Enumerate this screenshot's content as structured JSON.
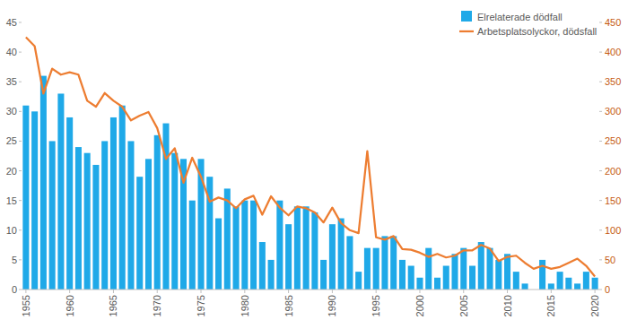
{
  "chart_data": {
    "type": "bar",
    "x": [
      1955,
      1956,
      1957,
      1958,
      1959,
      1960,
      1961,
      1962,
      1963,
      1964,
      1965,
      1966,
      1967,
      1968,
      1969,
      1970,
      1971,
      1972,
      1973,
      1974,
      1975,
      1976,
      1977,
      1978,
      1979,
      1980,
      1981,
      1982,
      1983,
      1984,
      1985,
      1986,
      1987,
      1988,
      1989,
      1990,
      1991,
      1992,
      1993,
      1994,
      1995,
      1996,
      1997,
      1998,
      1999,
      2000,
      2001,
      2002,
      2003,
      2004,
      2005,
      2006,
      2007,
      2008,
      2009,
      2010,
      2011,
      2012,
      2013,
      2014,
      2015,
      2016,
      2017,
      2018,
      2019,
      2020
    ],
    "xlim": [
      1954.5,
      2020.5
    ],
    "xticks": [
      1955,
      1960,
      1965,
      1970,
      1975,
      1980,
      1985,
      1990,
      1995,
      2000,
      2005,
      2010,
      2015,
      2020
    ],
    "ylim": [
      0,
      45
    ],
    "yticks": [
      0,
      5,
      10,
      15,
      20,
      25,
      30,
      35,
      40,
      45
    ],
    "y2lim": [
      0,
      450
    ],
    "y2ticks": [
      0,
      50,
      100,
      150,
      200,
      250,
      300,
      350,
      400,
      450
    ],
    "grid": false,
    "legend": "upper right",
    "series": [
      {
        "name": "Elrelaterade dödfall",
        "type": "bar",
        "color": "#1fa9e8",
        "values": [
          31,
          30,
          36,
          25,
          33,
          29,
          24,
          23,
          21,
          25,
          29,
          31,
          25,
          19,
          22,
          26,
          28,
          23,
          22,
          15,
          22,
          19,
          12,
          17,
          14,
          15,
          15,
          8,
          5,
          15,
          11,
          14,
          14,
          13,
          5,
          11,
          12,
          9,
          3,
          7,
          7,
          9,
          9,
          5,
          4,
          2,
          7,
          2,
          4,
          6,
          7,
          4,
          8,
          7,
          5,
          6,
          3,
          1,
          0,
          5,
          1,
          3,
          2,
          1,
          3,
          2
        ]
      },
      {
        "name": "Arbetsplatsolyckor, dödsfall",
        "type": "line",
        "axis": "y2",
        "color": "#ed7d31",
        "line_style": "solid",
        "values": [
          425,
          410,
          330,
          372,
          362,
          366,
          362,
          318,
          308,
          331,
          318,
          308,
          285,
          293,
          299,
          272,
          220,
          238,
          180,
          222,
          190,
          148,
          155,
          150,
          137,
          152,
          158,
          126,
          157,
          138,
          125,
          140,
          137,
          130,
          113,
          138,
          112,
          100,
          95,
          233,
          88,
          84,
          90,
          68,
          67,
          62,
          55,
          60,
          54,
          57,
          66,
          66,
          75,
          69,
          48,
          55,
          57,
          45,
          35,
          40,
          35,
          38,
          45,
          52,
          40,
          22
        ]
      }
    ]
  }
}
